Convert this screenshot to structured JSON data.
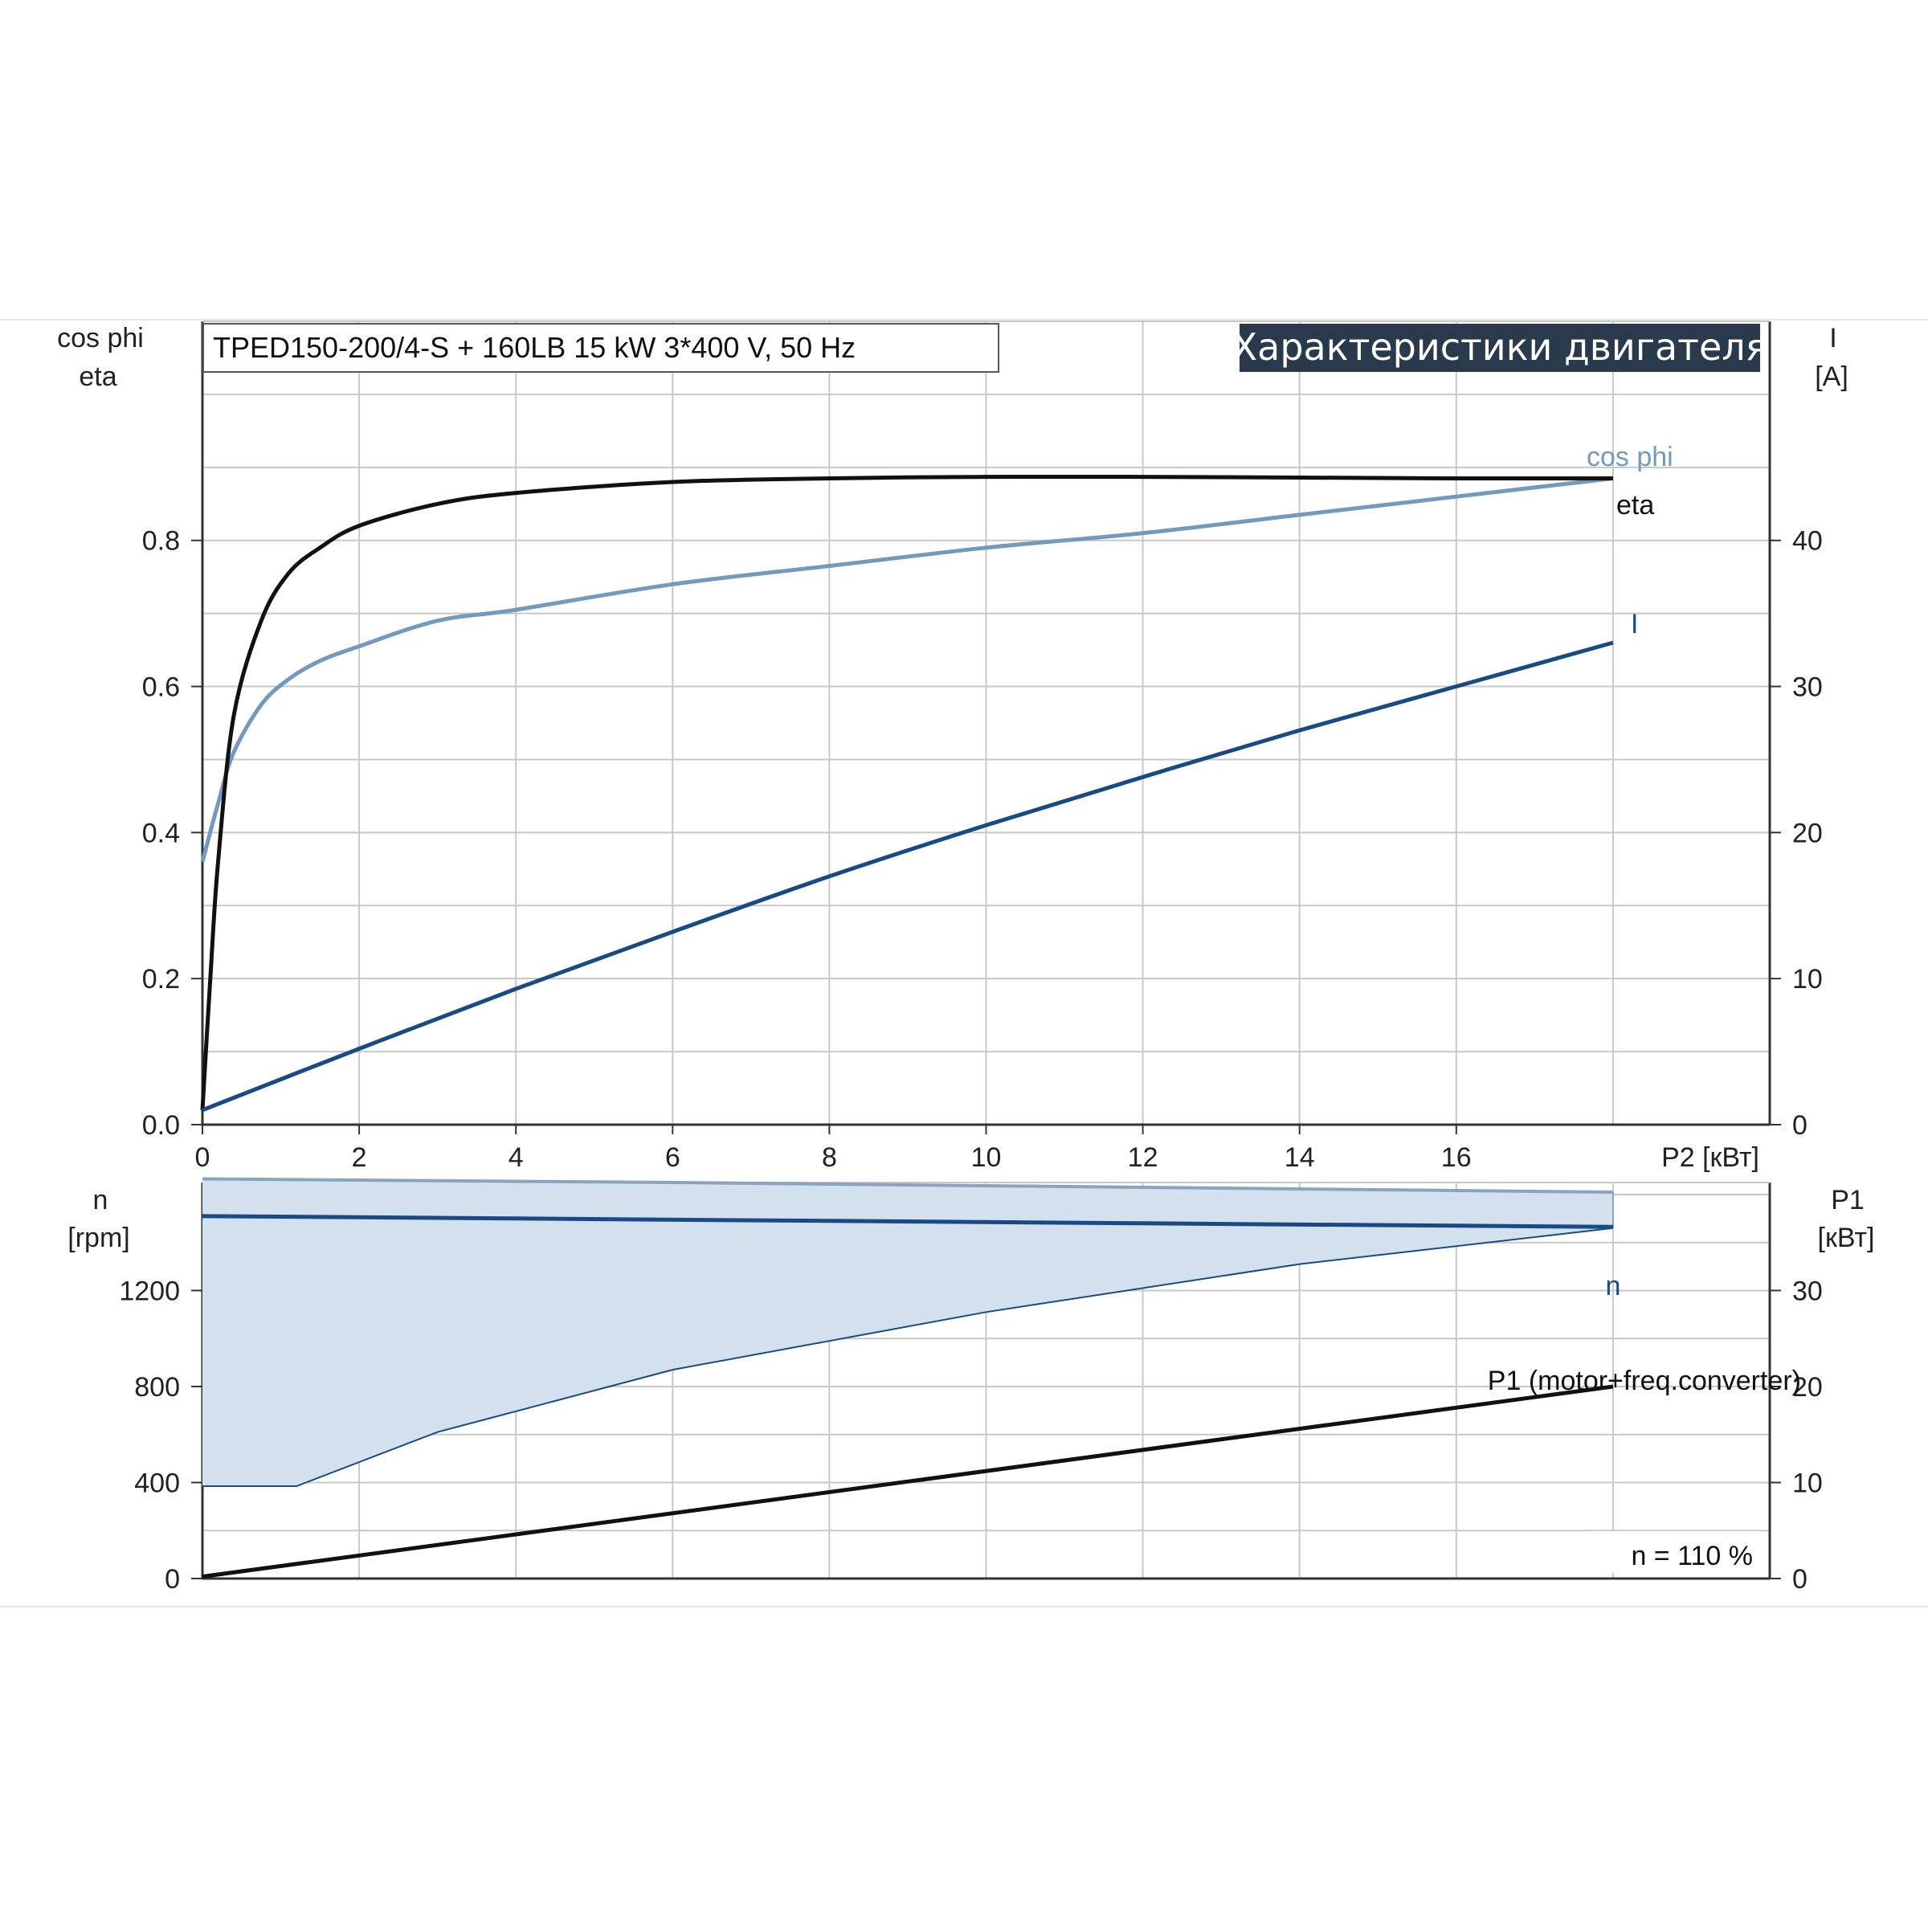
{
  "subtitle": "TPED150-200/4-S + 160LB   15 kW   3*400 V, 50 Hz",
  "banner": "Характеристики двигателя",
  "colors": {
    "eta": "#111111",
    "cos_phi": "#7399bf",
    "current": "#1a4a85",
    "speed": "#1a4a85",
    "speed_band_fill": "#d3e0ee",
    "speed_band_edge": "#8aa3bf",
    "p1": "#111111",
    "banner_bg": "#2a3a4d",
    "grid": "#c8c8c8",
    "axis": "#333333"
  },
  "chart_data": [
    {
      "type": "line",
      "xlabel": "P2 [кВт]",
      "x_ticks": [
        "0",
        "2",
        "4",
        "6",
        "8",
        "10",
        "12",
        "14",
        "16"
      ],
      "xlim": [
        0,
        20
      ],
      "left_axis": {
        "label_lines": [
          "cos phi",
          "eta"
        ],
        "ylim": [
          0,
          1.1
        ],
        "ticks": [
          "0.0",
          "0.2",
          "0.4",
          "0.6",
          "0.8"
        ],
        "tick_values": [
          0,
          0.2,
          0.4,
          0.6,
          0.8
        ]
      },
      "right_axis": {
        "label_lines": [
          "I",
          "[A]"
        ],
        "ylim": [
          0,
          55
        ],
        "ticks": [
          "0",
          "10",
          "20",
          "30",
          "40"
        ],
        "tick_values": [
          0,
          10,
          20,
          30,
          40
        ]
      },
      "grid": true,
      "series": [
        {
          "name": "eta",
          "axis": "left",
          "x": [
            0,
            0.1,
            0.2,
            0.4,
            0.75,
            1.1,
            1.5,
            2,
            3,
            4,
            6,
            8,
            10,
            12,
            14,
            16,
            18
          ],
          "y": [
            0.02,
            0.2,
            0.36,
            0.56,
            0.69,
            0.755,
            0.79,
            0.82,
            0.85,
            0.865,
            0.88,
            0.885,
            0.887,
            0.887,
            0.886,
            0.885,
            0.885
          ]
        },
        {
          "name": "cos phi",
          "axis": "left",
          "x": [
            0,
            0.2,
            0.4,
            0.75,
            1.1,
            1.5,
            2,
            3,
            4,
            6,
            8,
            10,
            12,
            14,
            16,
            18
          ],
          "y": [
            0.36,
            0.44,
            0.51,
            0.575,
            0.61,
            0.635,
            0.655,
            0.69,
            0.705,
            0.74,
            0.765,
            0.79,
            0.81,
            0.835,
            0.86,
            0.885
          ]
        },
        {
          "name": "I",
          "axis": "right",
          "x": [
            0,
            2,
            4,
            6,
            8,
            10,
            12,
            14,
            16,
            18
          ],
          "y": [
            1,
            5.2,
            9.3,
            13.2,
            17,
            20.5,
            23.8,
            27,
            30,
            33
          ]
        }
      ]
    },
    {
      "type": "line",
      "xlim": [
        0,
        20
      ],
      "left_axis": {
        "label_lines": [
          "n",
          "[rpm]"
        ],
        "ylim": [
          0,
          1650
        ],
        "ticks": [
          "0",
          "400",
          "800",
          "1200"
        ],
        "tick_values": [
          0,
          400,
          800,
          1200
        ]
      },
      "right_axis": {
        "label_lines": [
          "P1",
          "[кВт]"
        ],
        "ylim": [
          0,
          41.25
        ],
        "ticks": [
          "0",
          "10",
          "20",
          "30"
        ],
        "tick_values": [
          0,
          10,
          20,
          30
        ]
      },
      "grid": true,
      "annotation": "n = 110 %",
      "series": [
        {
          "name": "n",
          "axis": "left",
          "x": [
            0,
            4,
            8,
            12,
            16,
            18
          ],
          "y": [
            1510,
            1500,
            1490,
            1480,
            1470,
            1465
          ]
        },
        {
          "name": "n band upper",
          "axis": "left",
          "x": [
            0,
            6,
            12,
            18
          ],
          "y": [
            1665,
            1650,
            1630,
            1610
          ]
        },
        {
          "name": "n band lower",
          "axis": "left",
          "x": [
            0,
            1.2,
            3,
            6,
            10,
            14,
            18
          ],
          "y": [
            385,
            385,
            610,
            870,
            1110,
            1310,
            1460
          ]
        },
        {
          "name": "P1 (motor+freq.converter)",
          "axis": "right",
          "x": [
            0,
            18
          ],
          "y": [
            0.2,
            20
          ]
        }
      ]
    }
  ]
}
